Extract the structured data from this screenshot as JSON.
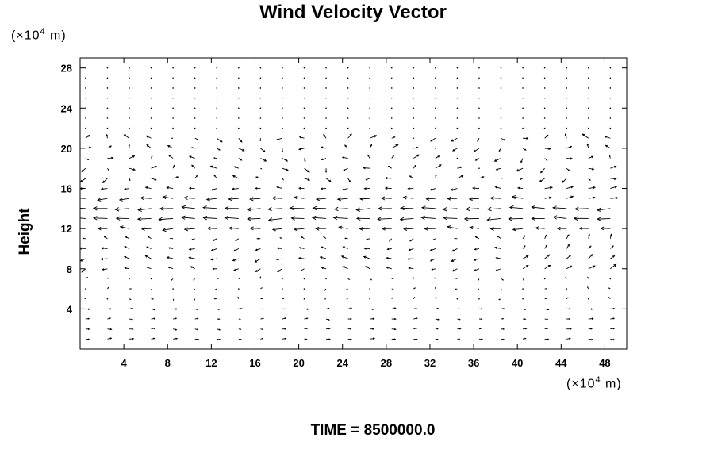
{
  "chart_data": {
    "type": "vector-field",
    "title": "Wind Velocity Vector",
    "ylabel": "Height",
    "x_unit": {
      "prefix": "(×10",
      "exp": "4",
      "suffix": " m)"
    },
    "y_unit": {
      "prefix": "(×10",
      "exp": "4",
      "suffix": " m)"
    },
    "xlim": [
      0,
      50
    ],
    "ylim": [
      0,
      29
    ],
    "x_ticks": [
      4,
      8,
      12,
      16,
      20,
      24,
      28,
      32,
      36,
      40,
      44,
      48
    ],
    "y_ticks": [
      4,
      8,
      12,
      16,
      20,
      24,
      28
    ],
    "grid": false,
    "grid_x_start": 0.5,
    "grid_x_step": 2,
    "grid_x_count": 25,
    "grid_y_start": 1,
    "grid_y_step": 1,
    "grid_y_count": 28,
    "footer": "TIME = 8500000.0"
  }
}
